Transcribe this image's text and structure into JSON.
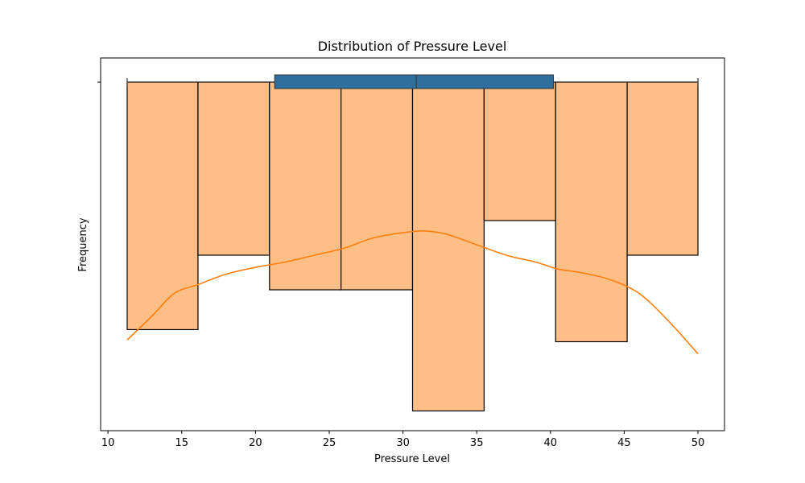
{
  "chart_data": {
    "type": "bar",
    "title": "Distribution of Pressure Level",
    "xlabel": "Pressure Level",
    "ylabel": "Frequency",
    "xlim": [
      9.5,
      51.8
    ],
    "x_ticks": [
      10,
      15,
      20,
      25,
      30,
      35,
      40,
      45,
      50
    ],
    "grid": false,
    "histogram": {
      "bin_edges": [
        11.3,
        16.1,
        20.95,
        25.8,
        30.65,
        35.5,
        40.35,
        45.2,
        50.0
      ],
      "heights": [
        1.43,
        1.0,
        1.2,
        1.2,
        1.9,
        0.8,
        1.5,
        1.0
      ],
      "color": "#ffbe85",
      "edgecolor": "#000000"
    },
    "kde": {
      "color": "#ff7f0e",
      "x": [
        11.3,
        13.0,
        14.5,
        16.1,
        18.0,
        20.0,
        22.0,
        24.0,
        26.0,
        28.0,
        30.0,
        31.5,
        33.0,
        35.0,
        37.0,
        39.0,
        40.5,
        42.0,
        44.0,
        46.0,
        48.0,
        50.0
      ],
      "y": [
        1.49,
        1.35,
        1.22,
        1.17,
        1.11,
        1.07,
        1.04,
        1.0,
        0.96,
        0.9,
        0.87,
        0.86,
        0.88,
        0.94,
        1.0,
        1.04,
        1.08,
        1.1,
        1.14,
        1.22,
        1.38,
        1.57
      ]
    },
    "boxplot": {
      "whisker_low": 11.3,
      "q1": 21.3,
      "median": 30.9,
      "q3": 40.2,
      "whisker_high": 50.0,
      "color": "#2e6f9e",
      "edgecolor": "#333333"
    }
  }
}
